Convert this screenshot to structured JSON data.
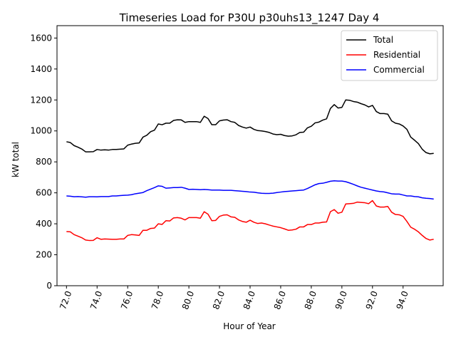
{
  "chart_data": {
    "type": "line",
    "title": "Timeseries Load for P30U p30uhs13_1247  Day 4",
    "xlabel": "Hour of Year",
    "ylabel": "kW total",
    "xlim": [
      71.38,
      96.62
    ],
    "ylim": [
      0,
      1680
    ],
    "x_start": 72.0,
    "x_step": 0.25,
    "x_ticks": [
      72,
      74,
      76,
      78,
      80,
      82,
      84,
      86,
      88,
      90,
      92,
      94
    ],
    "x_tick_labels": [
      "72.0",
      "74.0",
      "76.0",
      "78.0",
      "80.0",
      "82.0",
      "84.0",
      "86.0",
      "88.0",
      "90.0",
      "92.0",
      "94.0"
    ],
    "y_ticks": [
      0,
      200,
      400,
      600,
      800,
      1000,
      1200,
      1400,
      1600
    ],
    "y_tick_labels": [
      "0",
      "200",
      "400",
      "600",
      "800",
      "1000",
      "1200",
      "1400",
      "1600"
    ],
    "legend_position": "top-right",
    "series": [
      {
        "name": "Total",
        "color": "#000000",
        "values": [
          930,
          925,
          905,
          895,
          883,
          865,
          865,
          866,
          880,
          876,
          878,
          876,
          880,
          880,
          882,
          884,
          908,
          915,
          920,
          922,
          960,
          972,
          995,
          1005,
          1045,
          1040,
          1050,
          1050,
          1068,
          1072,
          1071,
          1055,
          1060,
          1060,
          1060,
          1055,
          1095,
          1080,
          1040,
          1040,
          1065,
          1070,
          1072,
          1060,
          1055,
          1035,
          1025,
          1018,
          1025,
          1010,
          1002,
          1000,
          996,
          990,
          980,
          976,
          978,
          970,
          966,
          968,
          975,
          990,
          992,
          1020,
          1030,
          1052,
          1057,
          1070,
          1078,
          1145,
          1170,
          1148,
          1152,
          1200,
          1198,
          1190,
          1186,
          1176,
          1168,
          1155,
          1165,
          1125,
          1112,
          1112,
          1108,
          1065,
          1050,
          1045,
          1032,
          1010,
          960,
          940,
          918,
          882,
          860,
          852,
          855
        ]
      },
      {
        "name": "Residential",
        "color": "#ff0000",
        "values": [
          350,
          348,
          330,
          320,
          310,
          295,
          292,
          293,
          310,
          300,
          302,
          301,
          300,
          300,
          302,
          302,
          325,
          330,
          328,
          325,
          358,
          358,
          370,
          372,
          400,
          396,
          420,
          418,
          438,
          440,
          436,
          425,
          440,
          440,
          440,
          436,
          478,
          462,
          420,
          422,
          448,
          456,
          458,
          445,
          442,
          425,
          415,
          410,
          423,
          410,
          402,
          405,
          400,
          392,
          385,
          380,
          375,
          367,
          358,
          360,
          365,
          380,
          380,
          395,
          395,
          405,
          405,
          410,
          412,
          478,
          492,
          468,
          475,
          528,
          530,
          532,
          540,
          538,
          536,
          530,
          550,
          515,
          508,
          508,
          512,
          475,
          460,
          458,
          448,
          415,
          378,
          365,
          348,
          325,
          305,
          295,
          300
        ]
      },
      {
        "name": "Commercial",
        "color": "#0000ff",
        "values": [
          580,
          578,
          575,
          576,
          574,
          572,
          575,
          575,
          574,
          576,
          576,
          576,
          580,
          580,
          582,
          584,
          585,
          588,
          594,
          598,
          602,
          614,
          624,
          634,
          645,
          642,
          630,
          632,
          634,
          634,
          636,
          630,
          622,
          623,
          622,
          620,
          622,
          620,
          618,
          618,
          618,
          616,
          616,
          616,
          614,
          612,
          610,
          608,
          605,
          604,
          600,
          597,
          596,
          596,
          598,
          602,
          605,
          608,
          610,
          612,
          614,
          616,
          618,
          628,
          640,
          652,
          660,
          662,
          668,
          675,
          678,
          676,
          676,
          672,
          664,
          655,
          645,
          636,
          630,
          624,
          618,
          612,
          608,
          606,
          600,
          594,
          592,
          592,
          586,
          580,
          580,
          576,
          574,
          568,
          565,
          563,
          560
        ]
      }
    ]
  }
}
